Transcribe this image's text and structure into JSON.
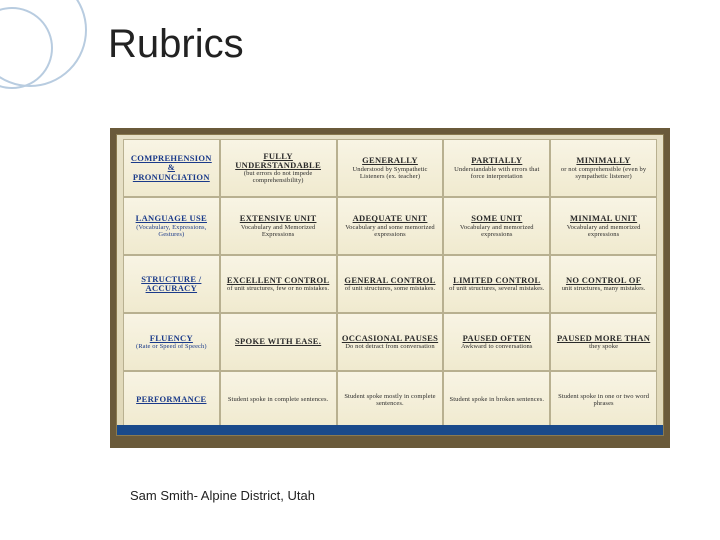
{
  "title": "Rubrics",
  "caption": "Sam Smith- Alpine District, Utah",
  "ornament": {
    "stroke": "#b8cce0",
    "stroke_width": 2
  },
  "board": {
    "frame_color": "#6a5a3a",
    "surface_color_top": "#f8f4e4",
    "surface_color_bottom": "#f0eacf",
    "grid_line_color": "#b8b090",
    "blue_strip": "#1a4a8a",
    "row_header_color": "#1a3a8a",
    "cell_font_family": "Comic Sans MS",
    "head_fontsize": 8.5,
    "sub_fontsize": 6.5
  },
  "rubric": {
    "rows": [
      {
        "category_head": "Comprehension & Pronunciation",
        "category_sub": "",
        "levels": [
          {
            "head": "Fully Understandable",
            "sub": "(but errors do not impede comprehensibility)"
          },
          {
            "head": "Generally",
            "sub": "Understood by Sympathetic Listeners (ex. teacher)"
          },
          {
            "head": "Partially",
            "sub": "Understandable with errors that force interpretation"
          },
          {
            "head": "Minimally",
            "sub": "or not comprehensible (even by sympathetic listener)"
          }
        ]
      },
      {
        "category_head": "Language Use",
        "category_sub": "(Vocabulary, Expressions, Gestures)",
        "levels": [
          {
            "head": "Extensive Unit",
            "sub": "Vocabulary and Memorized Expressions"
          },
          {
            "head": "Adequate Unit",
            "sub": "Vocabulary and some memorized expressions"
          },
          {
            "head": "Some Unit",
            "sub": "Vocabulary and memorized expressions"
          },
          {
            "head": "Minimal Unit",
            "sub": "Vocabulary and memorized expressions"
          }
        ]
      },
      {
        "category_head": "Structure / Accuracy",
        "category_sub": "",
        "levels": [
          {
            "head": "Excellent control",
            "sub": "of unit structures, few or no mistakes."
          },
          {
            "head": "General control",
            "sub": "of unit structures, some mistakes."
          },
          {
            "head": "Limited control",
            "sub": "of unit structures, several mistakes."
          },
          {
            "head": "No control of",
            "sub": "unit structures, many mistakes."
          }
        ]
      },
      {
        "category_head": "Fluency",
        "category_sub": "(Rate or Speed of Speech)",
        "levels": [
          {
            "head": "Spoke with ease.",
            "sub": ""
          },
          {
            "head": "Occasional Pauses",
            "sub": "Do not detract from conversation"
          },
          {
            "head": "Paused Often",
            "sub": "Awkward to conversations"
          },
          {
            "head": "Paused more than",
            "sub": "they spoke"
          }
        ]
      },
      {
        "category_head": "Performance",
        "category_sub": "",
        "levels": [
          {
            "head": "",
            "sub": "Student spoke in complete sentences."
          },
          {
            "head": "",
            "sub": "Student spoke mostly in complete sentences."
          },
          {
            "head": "",
            "sub": "Student spoke in broken sentences."
          },
          {
            "head": "",
            "sub": "Student spoke in one or two word phrases"
          }
        ]
      }
    ]
  }
}
